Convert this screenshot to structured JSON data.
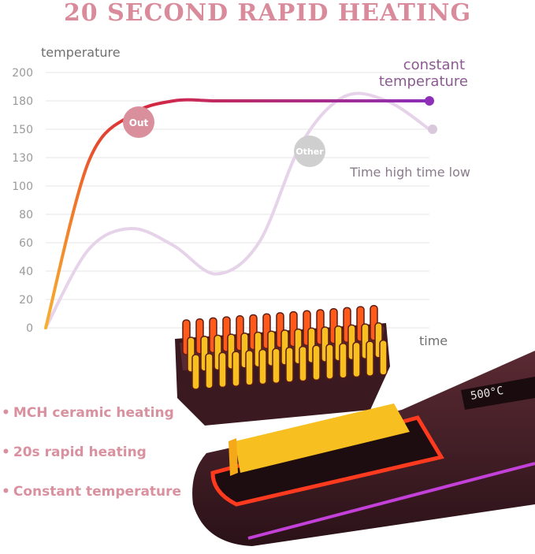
{
  "header": {
    "title": "20 SECOND RAPID HEATING"
  },
  "chart_data": {
    "type": "line",
    "ylabel": "temperature",
    "xlabel": "time",
    "y_ticks": [
      0,
      20,
      40,
      60,
      80,
      100,
      130,
      150,
      180,
      200
    ],
    "grid": true,
    "series": [
      {
        "name": "Out",
        "annotation": "constant temperature",
        "color_start": "#f0a020",
        "color_end": "#8e2fb8",
        "values": [
          0,
          125,
          165,
          180,
          180,
          180,
          180,
          180,
          180,
          180
        ]
      },
      {
        "name": "Other",
        "annotation": "Time high time low",
        "color": "#e6d3ea",
        "values": [
          0,
          55,
          70,
          58,
          38,
          60,
          140,
          183,
          180,
          150
        ]
      }
    ]
  },
  "features": [
    {
      "dot": "•",
      "label": "MCH ceramic heating"
    },
    {
      "dot": "•",
      "label": "20s rapid heating"
    },
    {
      "dot": "•",
      "label": "Constant temperature"
    }
  ],
  "product": {
    "display_text": "500°C"
  },
  "colors": {
    "title": "#d98b9b",
    "feature_text": "#d9919f",
    "badge_out": "#d9909c",
    "badge_other": "#cfcfcf",
    "device_body": "#3a1a22",
    "heater": "#f7bf20",
    "glow": "#ff3a1e",
    "accent_strip": "#c341d8"
  }
}
